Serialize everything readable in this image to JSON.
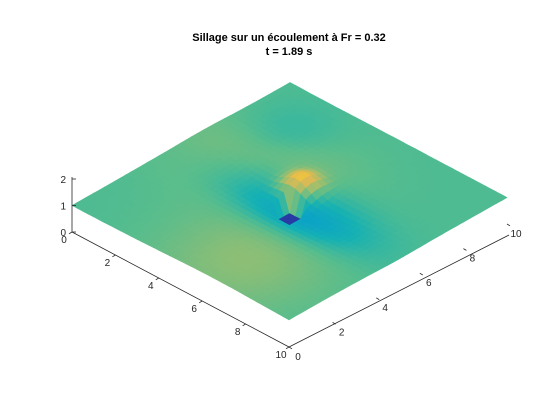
{
  "chart_data": {
    "type": "surface",
    "title": "Sillage sur un écoulement à Fr = 0.32",
    "subtitle": "t = 1.89 s",
    "xlabel": "",
    "ylabel": "",
    "zlabel": "",
    "xlim": [
      0,
      10
    ],
    "ylim": [
      0,
      10
    ],
    "zlim": [
      0,
      2
    ],
    "x_ticks": [
      0,
      2,
      4,
      6,
      8,
      10
    ],
    "y_ticks": [
      0,
      2,
      4,
      6,
      8,
      10
    ],
    "z_ticks": [
      0,
      1,
      2
    ],
    "colormap": "parula",
    "grid": false,
    "surface": {
      "base_level": 1.0,
      "obstacle": {
        "x_range": [
          4.7,
          5.3
        ],
        "y_range": [
          4.7,
          5.3
        ],
        "level": 0.35
      },
      "wake": [
        {
          "x": 5.2,
          "y": 4.9,
          "sx": 3.2,
          "sy": 1.4,
          "amplitude": -0.3
        },
        {
          "x": 2.0,
          "y": 7.6,
          "sx": 1.8,
          "sy": 1.8,
          "amplitude": -0.12
        }
      ],
      "crest": [
        {
          "x": 4.6,
          "y": 5.9,
          "sx": 0.7,
          "sy": 0.7,
          "amplitude": 0.45
        },
        {
          "x": 2.5,
          "y": 6.0,
          "sx": 3.0,
          "sy": 2.4,
          "amplitude": 0.16
        },
        {
          "x": 6.5,
          "y": 1.5,
          "sx": 3.0,
          "sy": 3.0,
          "amplitude": 0.12
        }
      ]
    }
  }
}
